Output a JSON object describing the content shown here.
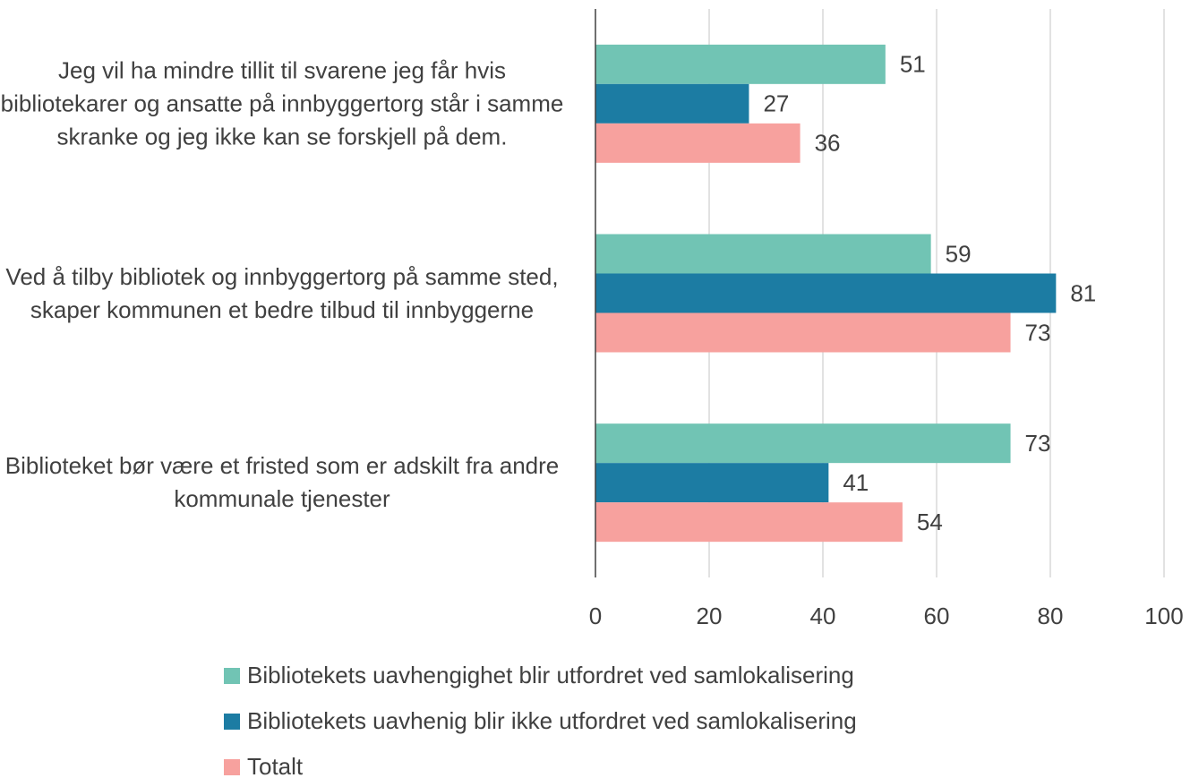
{
  "chart_data": {
    "type": "bar",
    "orientation": "horizontal",
    "categories": [
      "Jeg vil ha mindre tillit til svarene jeg får hvis bibliotekarer og ansatte på innbyggertorg står i samme skranke og jeg ikke kan se forskjell på dem.",
      "Ved å tilby bibliotek og innbyggertorg på samme sted, skaper kommunen et bedre tilbud til innbyggerne",
      "Biblioteket bør være et fristed som er adskilt fra andre kommunale tjenester"
    ],
    "series": [
      {
        "name": "Bibliotekets uavhengighet blir utfordret ved samlokalisering",
        "color": "#71c4b4",
        "values": [
          51,
          59,
          73
        ]
      },
      {
        "name": "Bibliotekets uavhenig blir ikke utfordret ved samlokalisering",
        "color": "#1c7ca3",
        "values": [
          27,
          81,
          41
        ]
      },
      {
        "name": "Totalt",
        "color": "#f7a19e",
        "values": [
          36,
          73,
          54
        ]
      }
    ],
    "xlim": [
      0,
      100
    ],
    "xticks": [
      0,
      20,
      40,
      60,
      80,
      100
    ],
    "grid": true
  }
}
